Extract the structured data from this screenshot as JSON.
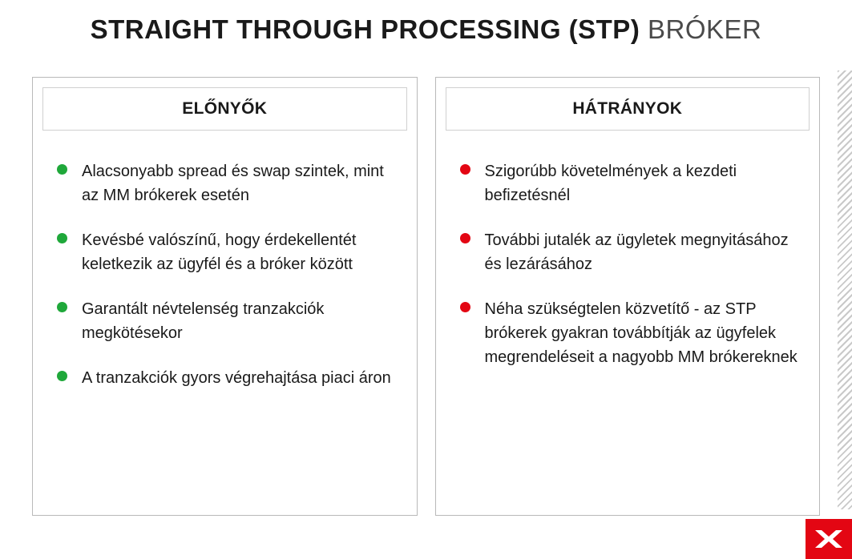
{
  "title": {
    "bold": "STRAIGHT THROUGH PROCESSING (STP)",
    "light": " BRÓKER"
  },
  "pros": {
    "header": "ELŐNYŐK",
    "bullet_color": "#1fa83a",
    "items": [
      "Alacsonyabb spread és swap szintek, mint az MM brókerek esetén",
      "Kevésbé valószínű, hogy érdekellentét keletkezik az ügyfél és a bróker között",
      "Garantált névtelenség tranzakciók megkötésekor",
      "A tranzakciók gyors végrehajtása piaci áron"
    ]
  },
  "cons": {
    "header": "HÁTRÁNYOK",
    "bullet_color": "#e30613",
    "items": [
      "Szigorúbb követelmények a kezdeti befizetésnél",
      "További jutalék az ügyletek megnyitásához és lezárásához",
      "Néha szükségtelen közvetítő - az STP brókerek gyakran továbbítják az ügyfelek megrendeléseit a nagyobb MM brókereknek"
    ]
  },
  "styling": {
    "border_color": "#b9b9b9",
    "inner_border_color": "#d0d0d0",
    "hatch_color": "#c9c9c9",
    "logo_bg": "#e30613",
    "logo_fg": "#ffffff"
  }
}
